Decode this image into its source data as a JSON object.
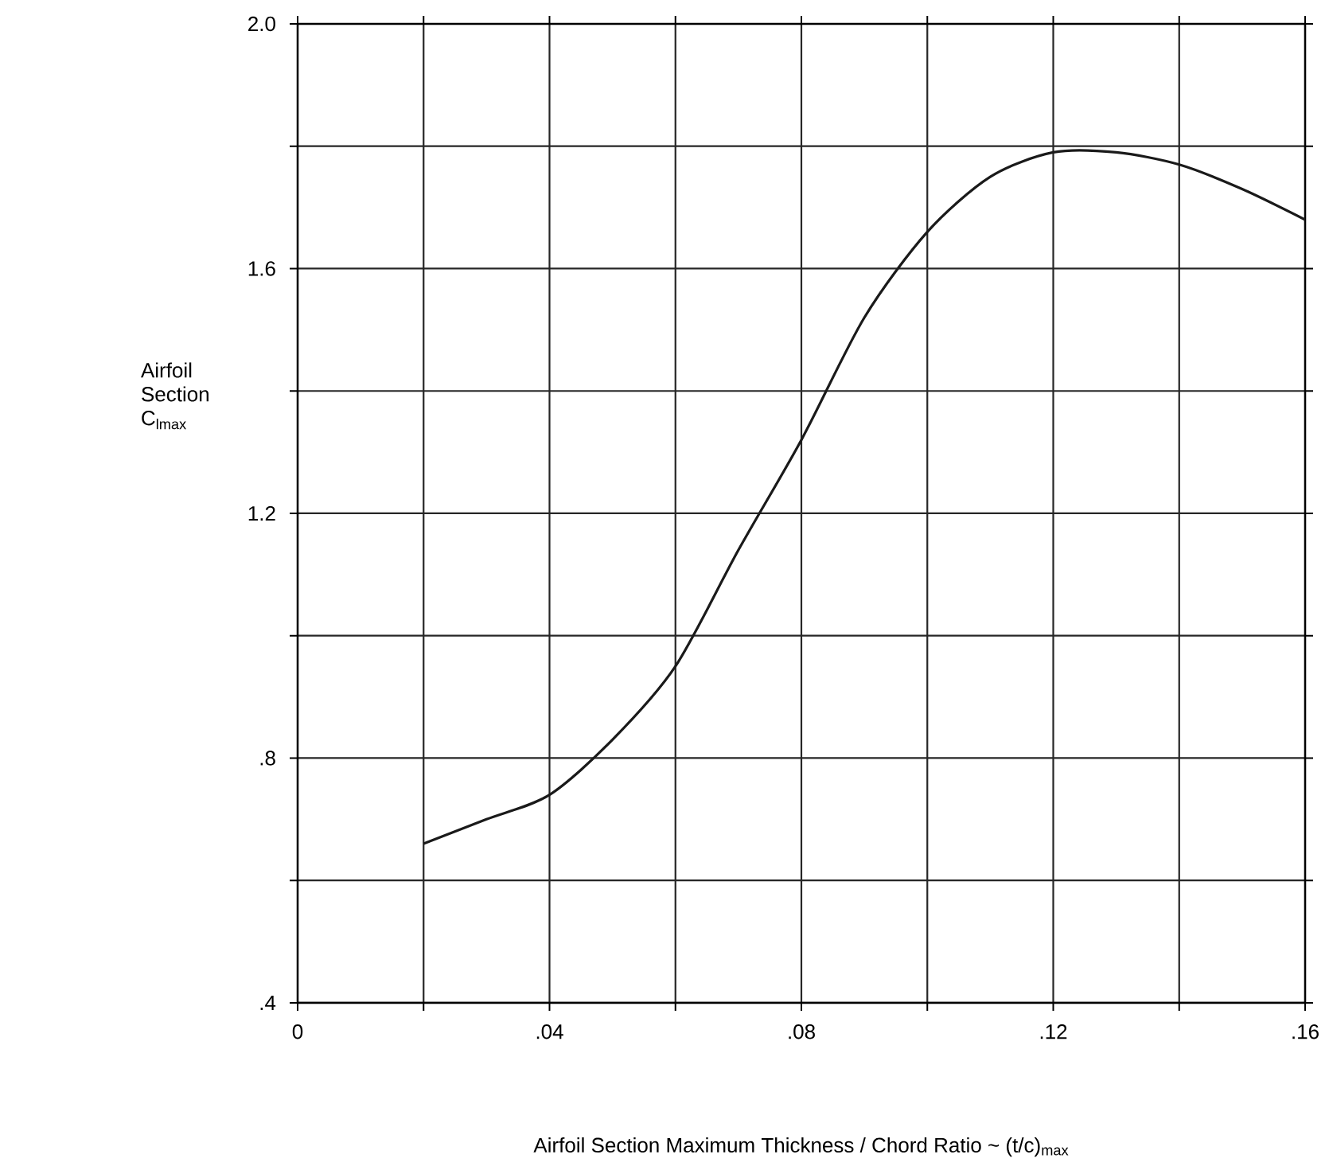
{
  "chart_data": {
    "type": "line",
    "xlabel": "Airfoil Section  Maximum Thickness / Chord Ratio ~ (t/c)$_{max}$",
    "ylabel": "Airfoil Section C$_{lmax}$",
    "x": [
      0.02,
      0.03,
      0.04,
      0.05,
      0.06,
      0.07,
      0.08,
      0.09,
      0.1,
      0.11,
      0.12,
      0.13,
      0.14,
      0.15,
      0.16
    ],
    "values": [
      0.66,
      0.7,
      0.74,
      0.83,
      0.95,
      1.14,
      1.32,
      1.52,
      1.66,
      1.75,
      1.79,
      1.79,
      1.77,
      1.73,
      1.68
    ],
    "color": "#1a1a1a",
    "xlim": [
      0,
      0.16
    ],
    "ylim": [
      0.4,
      2.0
    ],
    "xticks": [
      0,
      {
        "value": 0.02,
        "label": null
      },
      {
        "value": 0.04,
        "label": ".04"
      },
      {
        "value": 0.06,
        "label": null
      },
      {
        "value": 0.08,
        "label": ".08"
      },
      {
        "value": 0.1,
        "label": null
      },
      {
        "value": 0.12,
        "label": ".12"
      },
      {
        "value": 0.14,
        "label": null
      },
      {
        "value": 0.16,
        "label": ".16"
      }
    ],
    "yticks": [
      {
        "value": 0.4,
        "label": ".4"
      },
      {
        "value": 0.6,
        "label": null
      },
      {
        "value": 0.8,
        "label": ".8"
      },
      {
        "value": 1.0,
        "label": null
      },
      {
        "value": 1.2,
        "label": "1.2"
      },
      {
        "value": 1.4,
        "label": null
      },
      {
        "value": 1.6,
        "label": "1.6"
      },
      {
        "value": 1.8,
        "label": null
      },
      {
        "value": 2.0,
        "label": "2.0"
      }
    ],
    "grid": true
  }
}
